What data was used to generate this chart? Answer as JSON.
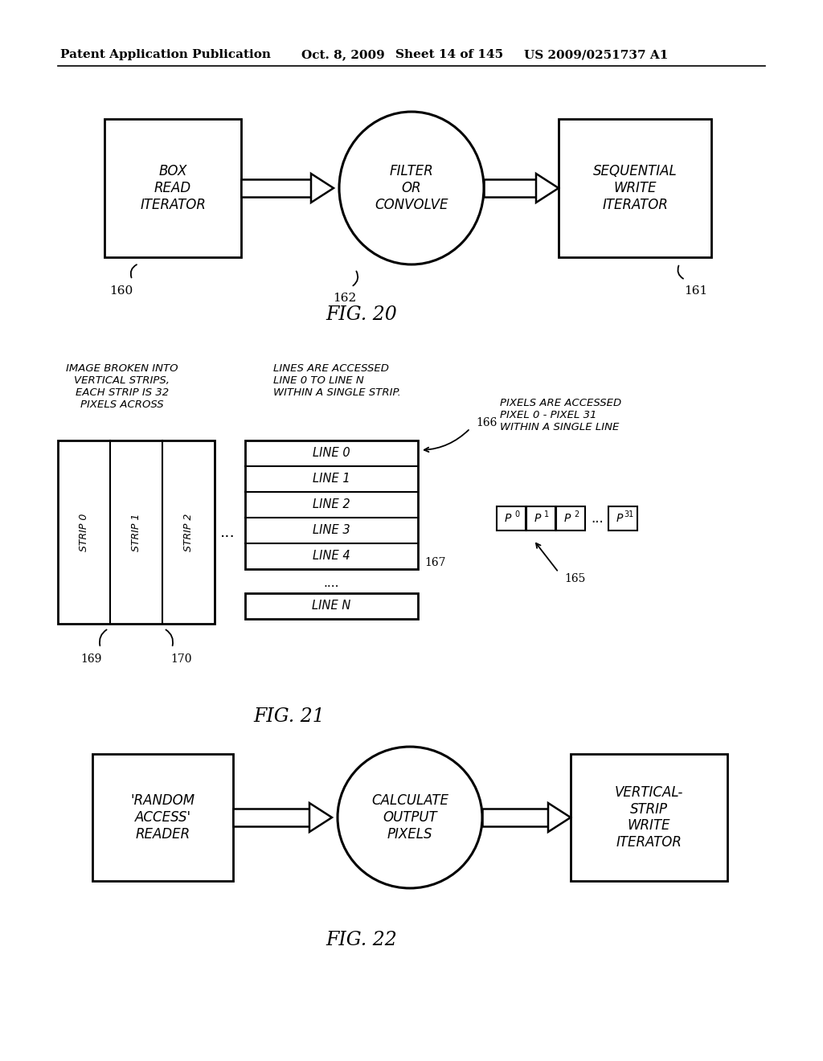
{
  "bg_color": "#ffffff",
  "header_left": "Patent Application Publication",
  "header_mid1": "Oct. 8, 2009",
  "header_mid2": "Sheet 14 of 145",
  "header_right": "US 2009/0251737 A1",
  "fig20_title": "FIG. 20",
  "fig20_box1": "BOX\nREAD\nITERATOR",
  "fig20_label1": "160",
  "fig20_ellipse": "FILTER\nOR\nCONVOLVE",
  "fig20_label_e": "162",
  "fig20_box2": "SEQUENTIAL\nWRITE\nITERATOR",
  "fig20_label2": "161",
  "fig21_title": "FIG. 21",
  "fig21_ann1": "IMAGE BROKEN INTO\nVERTICAL STRIPS,\nEACH STRIP IS 32\nPIXELS ACROSS",
  "fig21_ann2": "LINES ARE ACCESSED\nLINE 0 TO LINE N\nWITHIN A SINGLE STRIP.",
  "fig21_ann3": "PIXELS ARE ACCESSED\nPIXEL 0 - PIXEL 31\nWITHIN A SINGLE LINE",
  "fig21_strips": [
    "STRIP 0",
    "STRIP 1",
    "STRIP 2"
  ],
  "fig21_label169": "169",
  "fig21_label170": "170",
  "fig21_lines": [
    "LINE 0",
    "LINE 1",
    "LINE 2",
    "LINE 3",
    "LINE 4"
  ],
  "fig21_linen": "LINE N",
  "fig21_label166": "166",
  "fig21_label167": "167",
  "fig21_label165": "165",
  "fig22_title": "FIG. 22",
  "fig22_box1": "'RANDOM\nACCESS'\nREADER",
  "fig22_ellipse": "CALCULATE\nOUTPUT\nPIXELS",
  "fig22_box2": "VERTICAL-\nSTRIP\nWRITE\nITERATOR"
}
